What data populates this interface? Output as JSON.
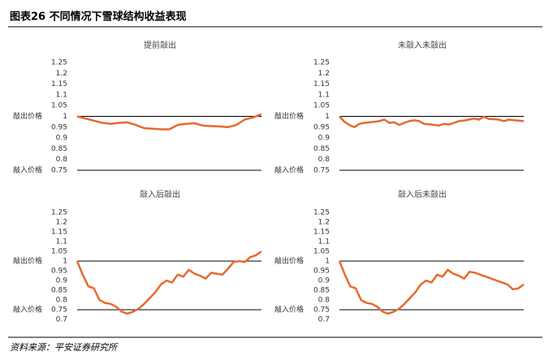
{
  "header": {
    "title": "图表26    不同情况下雪球结构收益表现"
  },
  "source": "资料来源：平安证券研究所",
  "chart_data": [
    {
      "type": "line",
      "title": "提前敲出",
      "color": "#e8692d",
      "values": [
        1.0,
        0.99,
        0.98,
        0.97,
        0.965,
        0.97,
        0.972,
        0.96,
        0.945,
        0.943,
        0.94,
        0.94,
        0.96,
        0.965,
        0.968,
        0.957,
        0.955,
        0.953,
        0.95,
        0.96,
        0.985,
        0.995,
        1.01
      ],
      "ylim": [
        0.75,
        1.25
      ],
      "yticks": [
        0.75,
        0.8,
        0.85,
        0.9,
        0.95,
        1,
        1.05,
        1.1,
        1.15,
        1.2,
        1.25
      ],
      "reference_lines": [
        {
          "value": 1,
          "label": "敲出价格"
        },
        {
          "value": 0.75,
          "label": "敲入价格"
        }
      ]
    },
    {
      "type": "line",
      "title": "未敲入未敲出",
      "color": "#e8692d",
      "values": [
        1.0,
        0.975,
        0.96,
        0.95,
        0.965,
        0.97,
        0.972,
        0.975,
        0.978,
        0.985,
        0.97,
        0.972,
        0.96,
        0.97,
        0.978,
        0.982,
        0.978,
        0.965,
        0.963,
        0.96,
        0.958,
        0.965,
        0.962,
        0.97,
        0.978,
        0.98,
        0.985,
        0.99,
        0.985,
        0.998,
        0.988,
        0.987,
        0.985,
        0.978,
        0.985,
        0.982,
        0.98,
        0.978
      ],
      "ylim": [
        0.75,
        1.25
      ],
      "yticks": [
        0.75,
        0.8,
        0.85,
        0.9,
        0.95,
        1,
        1.05,
        1.1,
        1.15,
        1.2,
        1.25
      ],
      "reference_lines": [
        {
          "value": 1,
          "label": "敲出价格"
        },
        {
          "value": 0.75,
          "label": "敲入价格"
        }
      ]
    },
    {
      "type": "line",
      "title": "敲入后敲出",
      "color": "#e8692d",
      "values": [
        1.0,
        0.93,
        0.87,
        0.86,
        0.8,
        0.785,
        0.78,
        0.765,
        0.74,
        0.73,
        0.74,
        0.755,
        0.78,
        0.81,
        0.84,
        0.88,
        0.9,
        0.89,
        0.93,
        0.92,
        0.955,
        0.935,
        0.925,
        0.91,
        0.94,
        0.935,
        0.93,
        0.96,
        0.995,
        1.0,
        0.995,
        1.02,
        1.03,
        1.05
      ],
      "ylim": [
        0.7,
        1.25
      ],
      "yticks": [
        0.7,
        0.75,
        0.8,
        0.85,
        0.9,
        0.95,
        1,
        1.05,
        1.1,
        1.15,
        1.2,
        1.25
      ],
      "reference_lines": [
        {
          "value": 1,
          "label": "敲出价格"
        },
        {
          "value": 0.75,
          "label": "敲入价格"
        }
      ]
    },
    {
      "type": "line",
      "title": "敲入后未敲出",
      "color": "#e8692d",
      "values": [
        1.0,
        0.93,
        0.87,
        0.86,
        0.8,
        0.785,
        0.78,
        0.765,
        0.74,
        0.73,
        0.74,
        0.755,
        0.78,
        0.81,
        0.84,
        0.88,
        0.9,
        0.89,
        0.93,
        0.92,
        0.955,
        0.935,
        0.925,
        0.91,
        0.945,
        0.94,
        0.93,
        0.92,
        0.91,
        0.9,
        0.89,
        0.88,
        0.855,
        0.86,
        0.88
      ],
      "ylim": [
        0.7,
        1.25
      ],
      "yticks": [
        0.7,
        0.75,
        0.8,
        0.85,
        0.9,
        0.95,
        1,
        1.05,
        1.1,
        1.15,
        1.2,
        1.25
      ],
      "reference_lines": [
        {
          "value": 1,
          "label": "敲出价格"
        },
        {
          "value": 0.75,
          "label": "敲入价格"
        }
      ]
    }
  ]
}
